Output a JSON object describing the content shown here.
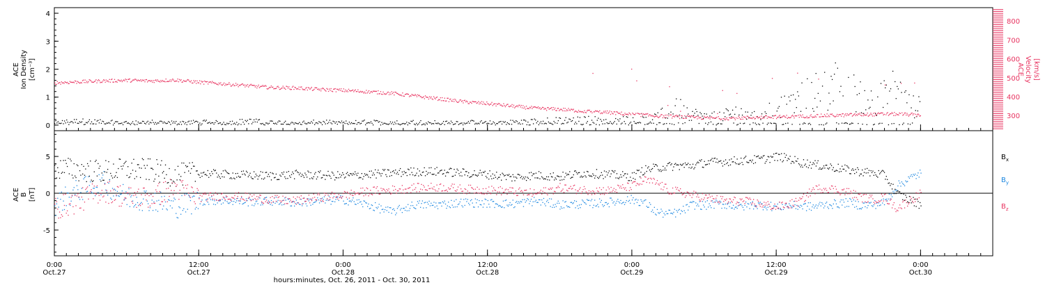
{
  "colors": {
    "density": "#000000",
    "velocity": "#e8325f",
    "bx": "#000000",
    "by": "#1a86e0",
    "bz": "#e8325f",
    "axis": "#000000",
    "background": "#ffffff"
  },
  "x_axis": {
    "major_ticks": [
      {
        "x": 0,
        "time": "0:00",
        "date": "Oct.27"
      },
      {
        "x": 12,
        "time": "12:00",
        "date": "Oct.27"
      },
      {
        "x": 24,
        "time": "0:00",
        "date": "Oct.28"
      },
      {
        "x": 36,
        "time": "12:00",
        "date": "Oct.28"
      },
      {
        "x": 48,
        "time": "0:00",
        "date": "Oct.29"
      },
      {
        "x": 60,
        "time": "12:00",
        "date": "Oct.29"
      },
      {
        "x": 72,
        "time": "0:00",
        "date": "Oct.30"
      }
    ],
    "minor_tick_step_hours": 1,
    "label": "hours:minutes, Oct. 26, 2011 - Oct. 30, 2011",
    "range_hours_since_oct27": [
      0,
      78
    ]
  },
  "chart_data": [
    {
      "type": "scatter",
      "panel": "top",
      "ylabel_left": {
        "line1": "ACE",
        "line2": "Ion Density",
        "unit": "[cm⁻³]"
      },
      "ylabel_right": {
        "line1": "ACE",
        "line2": "Velocity",
        "unit": "[km/s]"
      },
      "y_left": {
        "range": [
          -0.2,
          4.2
        ],
        "ticks": [
          0,
          1,
          2,
          3,
          4
        ]
      },
      "y_right": {
        "range": [
          220,
          870
        ],
        "ticks": [
          300,
          400,
          500,
          600,
          700,
          800
        ]
      },
      "grid": false,
      "series": [
        {
          "name": "Ion Density",
          "axis": "left",
          "color": "#000000",
          "x": [
            0,
            2,
            4,
            6,
            8,
            10,
            12,
            14,
            16,
            18,
            20,
            22,
            24,
            26,
            28,
            30,
            32,
            34,
            36,
            38,
            40,
            42,
            44,
            46,
            48,
            49,
            50,
            51,
            52,
            53,
            54,
            55,
            56,
            57,
            58,
            59,
            60,
            61,
            62,
            63,
            64,
            65,
            66,
            67,
            68,
            69,
            70,
            71,
            72
          ],
          "y": [
            0.1,
            0.15,
            0.12,
            0.1,
            0.12,
            0.1,
            0.12,
            0.1,
            0.15,
            0.12,
            0.1,
            0.12,
            0.1,
            0.12,
            0.1,
            0.12,
            0.1,
            0.12,
            0.1,
            0.12,
            0.15,
            0.18,
            0.2,
            0.2,
            0.2,
            0.3,
            0.25,
            0.5,
            0.6,
            0.4,
            0.3,
            0.3,
            0.4,
            0.5,
            0.6,
            0.5,
            0.7,
            0.6,
            0.9,
            1.1,
            1.2,
            1.4,
            1.2,
            1.0,
            0.8,
            1.0,
            1.3,
            0.7,
            0.6
          ]
        },
        {
          "name": "Velocity",
          "axis": "right",
          "color": "#e8325f",
          "x": [
            0,
            2,
            4,
            6,
            8,
            10,
            12,
            14,
            16,
            18,
            20,
            22,
            24,
            26,
            28,
            30,
            32,
            34,
            36,
            38,
            40,
            42,
            44,
            46,
            48,
            49,
            50,
            51,
            52,
            53,
            54,
            55,
            56,
            57,
            58,
            59,
            60,
            61,
            62,
            63,
            64,
            65,
            66,
            67,
            68,
            69,
            70,
            71,
            72
          ],
          "y": [
            475,
            480,
            485,
            488,
            485,
            490,
            478,
            470,
            460,
            450,
            448,
            440,
            435,
            428,
            420,
            405,
            390,
            375,
            365,
            352,
            340,
            335,
            325,
            318,
            308,
            305,
            300,
            298,
            295,
            292,
            290,
            288,
            288,
            290,
            292,
            293,
            295,
            296,
            298,
            300,
            302,
            303,
            305,
            307,
            308,
            310,
            310,
            307,
            305
          ]
        }
      ]
    },
    {
      "type": "scatter",
      "panel": "bottom",
      "ylabel_left": {
        "line1": "ACE",
        "line2": "B",
        "unit": "[nT]"
      },
      "y_left": {
        "range": [
          -8.5,
          8.5
        ],
        "ticks": [
          -5,
          0,
          5
        ]
      },
      "grid": false,
      "zero_line": true,
      "legend": {
        "placement": "right",
        "entries": [
          {
            "name": "B",
            "subscript": "x",
            "color": "#000000"
          },
          {
            "name": "B",
            "subscript": "y",
            "color": "#1a86e0"
          },
          {
            "name": "B",
            "subscript": "z",
            "color": "#e8325f"
          }
        ]
      },
      "series": [
        {
          "name": "Bx",
          "color": "#000000",
          "x": [
            0,
            2,
            4,
            6,
            8,
            10,
            12,
            14,
            16,
            18,
            20,
            22,
            24,
            26,
            28,
            30,
            32,
            34,
            36,
            38,
            40,
            42,
            44,
            46,
            48,
            49,
            50,
            51,
            52,
            53,
            54,
            55,
            56,
            57,
            58,
            59,
            60,
            61,
            62,
            63,
            64,
            65,
            66,
            67,
            68,
            69,
            70,
            71,
            72
          ],
          "y": [
            3.5,
            3.2,
            3.0,
            3.3,
            3.2,
            2.5,
            2.8,
            2.6,
            2.5,
            2.4,
            2.6,
            2.5,
            2.4,
            2.6,
            2.8,
            3.0,
            3.0,
            2.8,
            2.6,
            2.2,
            2.5,
            2.3,
            2.8,
            2.6,
            2.3,
            3.2,
            3.5,
            3.7,
            3.8,
            3.8,
            4.2,
            4.3,
            4.4,
            4.5,
            4.6,
            4.7,
            5.0,
            4.8,
            4.2,
            4.0,
            3.7,
            3.5,
            3.2,
            3.0,
            2.8,
            2.5,
            0.0,
            -0.8,
            -1.5
          ]
        },
        {
          "name": "By",
          "color": "#1a86e0",
          "x": [
            0,
            2,
            4,
            6,
            8,
            10,
            12,
            14,
            16,
            18,
            20,
            22,
            24,
            26,
            28,
            30,
            32,
            34,
            36,
            38,
            40,
            42,
            44,
            46,
            48,
            49,
            50,
            51,
            52,
            53,
            54,
            55,
            56,
            57,
            58,
            59,
            60,
            61,
            62,
            63,
            64,
            65,
            66,
            67,
            68,
            69,
            70,
            71,
            72
          ],
          "y": [
            -1.5,
            0.5,
            1.5,
            -0.5,
            -0.8,
            -1.8,
            -1.0,
            -0.9,
            -1.1,
            -1.0,
            -1.2,
            -1.0,
            -0.8,
            -1.5,
            -2.5,
            -1.5,
            -1.5,
            -1.2,
            -1.3,
            -1.4,
            -1.0,
            -1.5,
            -1.4,
            -1.2,
            -0.8,
            -1.2,
            -2.5,
            -2.8,
            -2.5,
            -1.5,
            -1.6,
            -1.4,
            -1.5,
            -1.8,
            -1.5,
            -1.6,
            -1.8,
            -1.6,
            -1.7,
            -1.8,
            -1.5,
            -1.4,
            -1.2,
            -1.6,
            -1.5,
            -1.2,
            1.0,
            2.0,
            2.8
          ]
        },
        {
          "name": "Bz",
          "color": "#e8325f",
          "x": [
            0,
            2,
            4,
            6,
            8,
            10,
            12,
            14,
            16,
            18,
            20,
            22,
            24,
            26,
            28,
            30,
            32,
            34,
            36,
            38,
            40,
            42,
            44,
            46,
            48,
            49,
            50,
            51,
            52,
            53,
            54,
            55,
            56,
            57,
            58,
            59,
            60,
            61,
            62,
            63,
            64,
            65,
            66,
            67,
            68,
            69,
            70,
            71,
            72
          ],
          "y": [
            -2.0,
            -1.0,
            0.5,
            -0.5,
            -0.5,
            0.8,
            -0.5,
            -0.3,
            -0.5,
            -0.8,
            -1.0,
            -0.5,
            -0.2,
            0.3,
            0.5,
            0.8,
            0.9,
            0.6,
            0.5,
            0.3,
            0.0,
            0.8,
            0.5,
            0.4,
            1.0,
            1.8,
            1.5,
            0.5,
            0.2,
            -0.2,
            -0.5,
            -0.8,
            -1.0,
            -1.0,
            -1.2,
            -1.5,
            -1.8,
            -1.5,
            -1.0,
            0.5,
            0.8,
            0.5,
            0.2,
            -0.5,
            -0.8,
            -0.5,
            -2.0,
            -1.0,
            0.0
          ]
        }
      ]
    }
  ]
}
